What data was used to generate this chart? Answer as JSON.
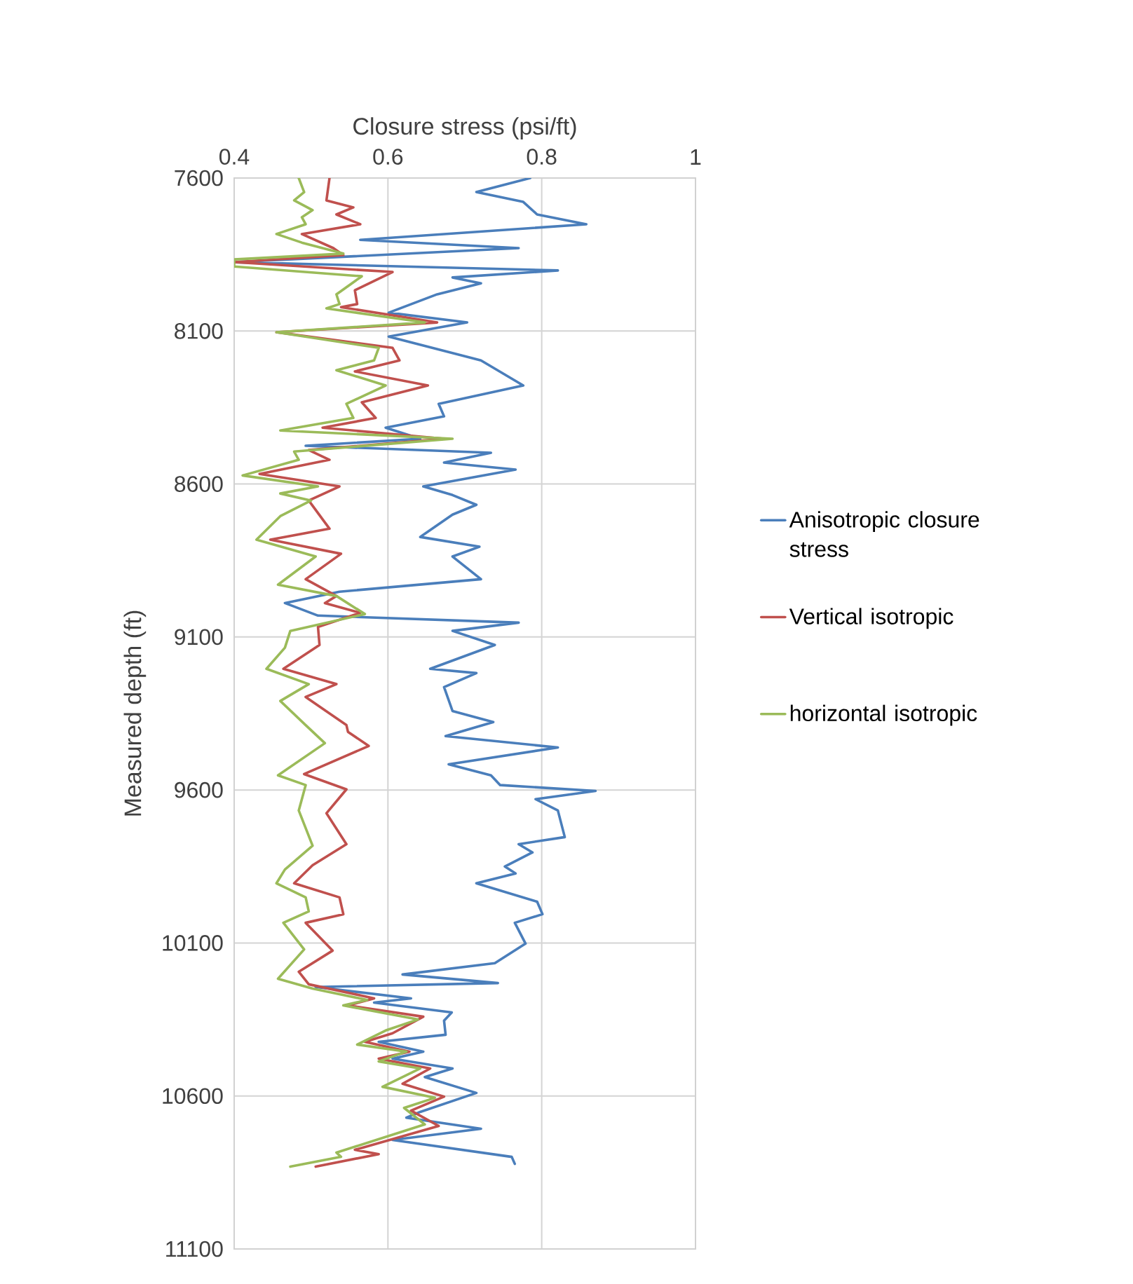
{
  "chart_data": {
    "type": "line",
    "xlabel": "Closure stress (psi/ft)",
    "ylabel": "Measured depth (ft)",
    "xlim": [
      0.4,
      1
    ],
    "xticks": [
      0.4,
      0.6,
      0.8,
      1
    ],
    "ylim": [
      11100,
      7600
    ],
    "yticks": [
      7600,
      8100,
      8600,
      9100,
      9600,
      10100,
      10600,
      11100
    ],
    "grid": true,
    "legend": "right",
    "marker": "none",
    "line_style": "solid",
    "series": [
      {
        "name": "Anisotropic closure stress",
        "color": "#4a7ebb",
        "x": [
          0.785,
          0.715,
          0.776,
          0.794,
          0.858,
          0.564,
          0.77,
          0.4,
          0.821,
          0.684,
          0.721,
          0.664,
          0.601,
          0.703,
          0.601,
          0.721,
          0.776,
          0.666,
          0.673,
          0.597,
          0.642,
          0.493,
          0.734,
          0.673,
          0.766,
          0.646,
          0.684,
          0.715,
          0.684,
          0.642,
          0.719,
          0.684,
          0.721,
          0.537,
          0.466,
          0.509,
          0.77,
          0.684,
          0.739,
          0.655,
          0.715,
          0.673,
          0.684,
          0.737,
          0.675,
          0.821,
          0.679,
          0.734,
          0.746,
          0.87,
          0.792,
          0.821,
          0.83,
          0.77,
          0.788,
          0.752,
          0.766,
          0.715,
          0.794,
          0.801,
          0.765,
          0.779,
          0.739,
          0.619,
          0.743,
          0.506,
          0.63,
          0.582,
          0.683,
          0.673,
          0.675,
          0.588,
          0.646,
          0.606,
          0.684,
          0.648,
          0.715,
          0.642,
          0.624,
          0.721,
          0.606,
          0.761,
          0.765
        ],
        "values": [
          7600,
          7646,
          7678,
          7719,
          7751,
          7802,
          7829,
          7875,
          7902,
          7925,
          7944,
          7980,
          8040,
          8072,
          8118,
          8196,
          8278,
          8338,
          8379,
          8416,
          8452,
          8475,
          8498,
          8530,
          8553,
          8608,
          8636,
          8668,
          8700,
          8773,
          8805,
          8837,
          8911,
          8952,
          8989,
          9030,
          9053,
          9080,
          9126,
          9204,
          9218,
          9264,
          9342,
          9378,
          9424,
          9461,
          9516,
          9552,
          9584,
          9603,
          9630,
          9667,
          9754,
          9777,
          9804,
          9850,
          9873,
          9905,
          9965,
          10006,
          10034,
          10102,
          10166,
          10203,
          10231,
          10244,
          10281,
          10295,
          10327,
          10354,
          10400,
          10423,
          10455,
          10478,
          10510,
          10538,
          10590,
          10652,
          10671,
          10707,
          10744,
          10799,
          10822
        ]
      },
      {
        "name": "Vertical isotropic",
        "color": "#c0504d",
        "x": [
          0.524,
          0.52,
          0.555,
          0.533,
          0.564,
          0.488,
          0.529,
          0.542,
          0.4,
          0.606,
          0.557,
          0.56,
          0.539,
          0.664,
          0.455,
          0.606,
          0.615,
          0.557,
          0.652,
          0.566,
          0.584,
          0.515,
          0.673,
          0.497,
          0.524,
          0.433,
          0.537,
          0.497,
          0.524,
          0.447,
          0.539,
          0.493,
          0.533,
          0.518,
          0.564,
          0.509,
          0.511,
          0.464,
          0.533,
          0.493,
          0.546,
          0.548,
          0.575,
          0.491,
          0.546,
          0.52,
          0.546,
          0.502,
          0.478,
          0.537,
          0.542,
          0.493,
          0.528,
          0.484,
          0.497,
          0.582,
          0.548,
          0.646,
          0.606,
          0.57,
          0.628,
          0.588,
          0.655,
          0.619,
          0.673,
          0.63,
          0.666,
          0.557,
          0.588,
          0.506
        ],
        "values": [
          7600,
          7673,
          7696,
          7719,
          7751,
          7783,
          7829,
          7852,
          7875,
          7907,
          7967,
          8012,
          8022,
          8072,
          8104,
          8155,
          8196,
          8232,
          8278,
          8333,
          8384,
          8416,
          8452,
          8489,
          8521,
          8567,
          8608,
          8654,
          8746,
          8782,
          8828,
          8911,
          8966,
          8989,
          9021,
          9067,
          9126,
          9204,
          9254,
          9296,
          9388,
          9410,
          9456,
          9548,
          9598,
          9676,
          9777,
          9846,
          9905,
          9951,
          10006,
          10034,
          10125,
          10194,
          10235,
          10281,
          10304,
          10341,
          10395,
          10423,
          10455,
          10478,
          10510,
          10560,
          10602,
          10648,
          10698,
          10776,
          10790,
          10831
        ]
      },
      {
        "name": "horizontal isotropic",
        "color": "#9bbb59",
        "x": [
          0.484,
          0.491,
          0.478,
          0.502,
          0.488,
          0.493,
          0.455,
          0.488,
          0.542,
          0.4,
          0.4,
          0.566,
          0.533,
          0.537,
          0.52,
          0.648,
          0.455,
          0.588,
          0.582,
          0.533,
          0.597,
          0.546,
          0.555,
          0.46,
          0.684,
          0.478,
          0.484,
          0.411,
          0.509,
          0.46,
          0.5,
          0.46,
          0.429,
          0.506,
          0.457,
          0.533,
          0.57,
          0.473,
          0.466,
          0.442,
          0.497,
          0.46,
          0.493,
          0.518,
          0.457,
          0.493,
          0.484,
          0.502,
          0.466,
          0.455,
          0.493,
          0.497,
          0.464,
          0.491,
          0.457,
          0.502,
          0.573,
          0.542,
          0.639,
          0.597,
          0.56,
          0.624,
          0.588,
          0.642,
          0.593,
          0.661,
          0.621,
          0.648,
          0.533,
          0.539,
          0.473
        ],
        "values": [
          7600,
          7646,
          7673,
          7705,
          7728,
          7751,
          7783,
          7811,
          7847,
          7866,
          7889,
          7921,
          7980,
          8012,
          8026,
          8072,
          8104,
          8155,
          8196,
          8228,
          8278,
          8338,
          8384,
          8425,
          8452,
          8494,
          8521,
          8572,
          8608,
          8631,
          8654,
          8705,
          8782,
          8837,
          8929,
          8966,
          9025,
          9080,
          9135,
          9204,
          9254,
          9309,
          9388,
          9447,
          9552,
          9584,
          9667,
          9782,
          9860,
          9905,
          9951,
          9997,
          10034,
          10121,
          10217,
          10249,
          10286,
          10304,
          10350,
          10386,
          10432,
          10455,
          10487,
          10510,
          10570,
          10606,
          10639,
          10693,
          10785,
          10799,
          10831
        ]
      }
    ]
  }
}
